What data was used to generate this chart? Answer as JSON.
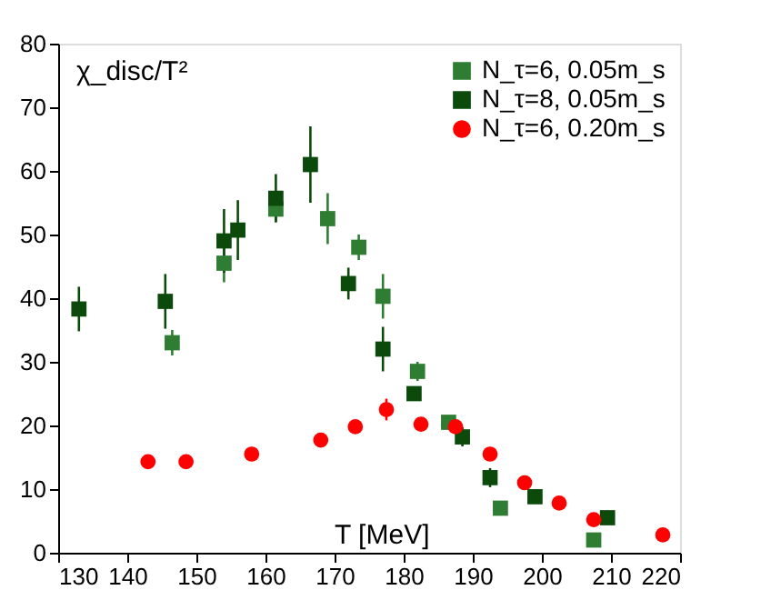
{
  "chart_data": {
    "type": "scatter",
    "xlabel": "T [MeV]",
    "ylabel": "χ_disc/T²",
    "xlim": [
      130,
      220
    ],
    "xticks": [
      130,
      140,
      150,
      160,
      170,
      180,
      190,
      200,
      210,
      220
    ],
    "ylim": [
      0,
      80
    ],
    "yticks": [
      0,
      10,
      20,
      30,
      40,
      50,
      60,
      70,
      80
    ],
    "grid": false,
    "legend": "top right",
    "series": [
      {
        "name": "N_τ=6, 0.05m_s",
        "color": "#2e7d32",
        "marker": "square",
        "x": [
          146.5,
          154,
          161.5,
          169,
          173.5,
          177,
          182,
          186.5,
          194,
          207.5
        ],
        "values": [
          33,
          45.5,
          54,
          52.5,
          48,
          40.3,
          28.5,
          20.5,
          7,
          2
        ],
        "errors": [
          2,
          3,
          2,
          4,
          2,
          3.5,
          1.5,
          1,
          null,
          null
        ]
      },
      {
        "name": "N_τ=8, 0.05m_s",
        "color": "#0b4a0b",
        "marker": "square",
        "x": [
          133,
          145.5,
          154,
          156,
          161.5,
          166.5,
          172,
          177,
          181.5,
          188.5,
          192.5,
          199,
          209.5
        ],
        "values": [
          38.3,
          39.5,
          49,
          50.7,
          55.7,
          61,
          42.3,
          32,
          25,
          18.2,
          11.8,
          8.8,
          5.5
        ],
        "errors": [
          3.5,
          4.3,
          5,
          4.7,
          3.8,
          6,
          2.5,
          3.5,
          1,
          1.5,
          1.5,
          null,
          null
        ]
      },
      {
        "name": "N_τ=6, 0.20m_s",
        "color": "#ff0000",
        "marker": "circle",
        "x": [
          143,
          148.5,
          158,
          168,
          173,
          177.5,
          182.5,
          187.5,
          192.5,
          197.5,
          202.5,
          207.5,
          217.5
        ],
        "values": [
          14.3,
          14.3,
          15.5,
          17.7,
          19.8,
          22.5,
          20.2,
          19.8,
          15.5,
          11,
          7.8,
          5.2,
          2.8
        ],
        "errors": [
          null,
          null,
          null,
          1,
          null,
          1.7,
          null,
          1,
          null,
          null,
          null,
          null,
          null
        ]
      }
    ]
  }
}
